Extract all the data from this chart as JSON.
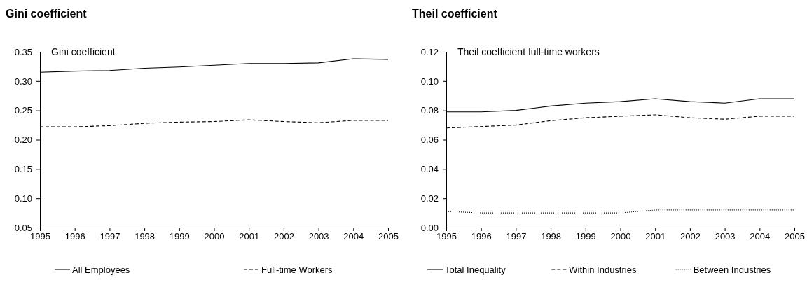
{
  "chart_data": [
    {
      "type": "line",
      "title": "Gini coefficient",
      "annotations": [
        "Gini coefficient"
      ],
      "x": [
        1995,
        1996,
        1997,
        1998,
        1999,
        2000,
        2001,
        2002,
        2003,
        2004,
        2005
      ],
      "xlim": [
        1995,
        2005
      ],
      "xticks": [
        1995,
        1996,
        1997,
        1998,
        1999,
        2000,
        2001,
        2002,
        2003,
        2004,
        2005
      ],
      "ylim": [
        0.05,
        0.35
      ],
      "yticks": [
        {
          "value": 0.05,
          "label": "0.05"
        },
        {
          "value": 0.1,
          "label": "0.10"
        },
        {
          "value": 0.15,
          "label": "0.15"
        },
        {
          "value": 0.2,
          "label": "0.20"
        },
        {
          "value": 0.25,
          "label": "0.25"
        },
        {
          "value": 0.3,
          "label": "0.30"
        },
        {
          "value": 0.35,
          "label": "0.35"
        }
      ],
      "legend": "bottom",
      "series": [
        {
          "name": "All Employees",
          "color": "#000000",
          "line_style": "solid",
          "values": [
            0.315,
            0.317,
            0.318,
            0.322,
            0.324,
            0.327,
            0.33,
            0.33,
            0.331,
            0.338,
            0.337
          ]
        },
        {
          "name": "Full-time Workers",
          "color": "#000000",
          "line_style": "dashed",
          "values": [
            0.222,
            0.222,
            0.224,
            0.228,
            0.23,
            0.231,
            0.234,
            0.231,
            0.229,
            0.233,
            0.233
          ]
        }
      ]
    },
    {
      "type": "line",
      "title": "Theil coefficient",
      "annotations": [
        "Theil coefficient full-time workers"
      ],
      "x": [
        1995,
        1996,
        1997,
        1998,
        1999,
        2000,
        2001,
        2002,
        2003,
        2004,
        2005
      ],
      "xlim": [
        1995,
        2005
      ],
      "xticks": [
        1995,
        1996,
        1997,
        1998,
        1999,
        2000,
        2001,
        2002,
        2003,
        2004,
        2005
      ],
      "ylim": [
        0,
        0.12
      ],
      "yticks": [
        {
          "value": 0,
          "label": "0.00"
        },
        {
          "value": 0.02,
          "label": "0.02"
        },
        {
          "value": 0.04,
          "label": "0.04"
        },
        {
          "value": 0.06,
          "label": "0.06"
        },
        {
          "value": 0.08,
          "label": "0.08"
        },
        {
          "value": 0.1,
          "label": "0.10"
        },
        {
          "value": 0.12,
          "label": "0.12"
        }
      ],
      "legend": "bottom",
      "series": [
        {
          "name": "Total Inequality",
          "color": "#000000",
          "line_style": "solid",
          "values": [
            0.079,
            0.079,
            0.08,
            0.083,
            0.085,
            0.086,
            0.088,
            0.086,
            0.085,
            0.088,
            0.088
          ]
        },
        {
          "name": "Within Industries",
          "color": "#000000",
          "line_style": "dashed",
          "values": [
            0.068,
            0.069,
            0.07,
            0.073,
            0.075,
            0.076,
            0.077,
            0.075,
            0.074,
            0.076,
            0.076
          ]
        },
        {
          "name": "Between Industries",
          "color": "#000000",
          "line_style": "dotted",
          "values": [
            0.011,
            0.01,
            0.01,
            0.01,
            0.01,
            0.01,
            0.012,
            0.012,
            0.012,
            0.012,
            0.012
          ]
        }
      ]
    }
  ]
}
